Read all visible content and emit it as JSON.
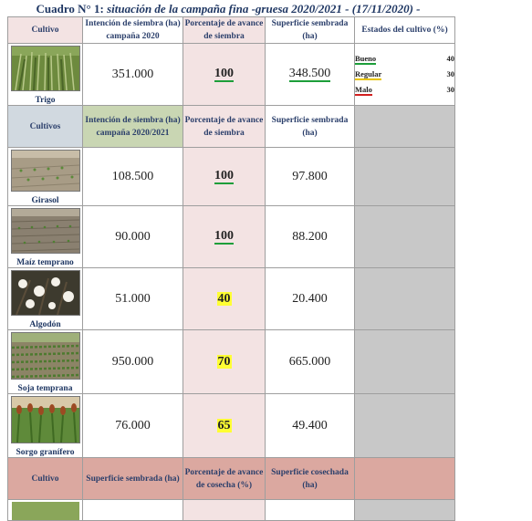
{
  "title": {
    "prefix": "Cuadro N° 1:",
    "text": "situación de la campaña fina -gruesa 2020/2021 - (17/11/2020) -"
  },
  "section1": {
    "headers": {
      "crop": "Cultivo",
      "intention": "Intención de siembra (ha) campaña 2020",
      "progress": "Porcentaje de avance de siembra",
      "area": "Superficie sembrada (ha)",
      "states": "Estados del cultivo (%)"
    },
    "row": {
      "crop": "Trigo",
      "intention": "351.000",
      "progress": "100",
      "area": "348.500"
    },
    "states": [
      {
        "label": "Bueno",
        "value": "40"
      },
      {
        "label": "Regular",
        "value": "30"
      },
      {
        "label": "Malo",
        "value": "30"
      }
    ]
  },
  "section2": {
    "headers": {
      "crop": "Cultivos",
      "intention": "Intención de siembra (ha) campaña 2020/2021",
      "progress": "Porcentaje de avance de siembra",
      "area": "Superficie sembrada (ha)"
    },
    "rows": [
      {
        "crop": "Girasol",
        "intention": "108.500",
        "progress": "100",
        "area": "97.800"
      },
      {
        "crop": "Maíz temprano",
        "intention": "90.000",
        "progress": "100",
        "area": "88.200"
      },
      {
        "crop": "Algodón",
        "intention": "51.000",
        "progress": "40",
        "area": "20.400"
      },
      {
        "crop": "Soja temprana",
        "intention": "950.000",
        "progress": "70",
        "area": "665.000"
      },
      {
        "crop": "Sorgo granífero",
        "intention": "76.000",
        "progress": "65",
        "area": "49.400"
      }
    ]
  },
  "section3": {
    "headers": {
      "crop": "Cultivo",
      "area": "Superficie sembrada (ha)",
      "progress": "Porcentaje de avance de cosecha (%)",
      "harvested": "Superficie cosechada (ha)"
    }
  },
  "colors": {
    "good": "#1d9e3a",
    "regular": "#e8c400",
    "bad": "#d21f1f",
    "highlight": "#ffff33"
  }
}
